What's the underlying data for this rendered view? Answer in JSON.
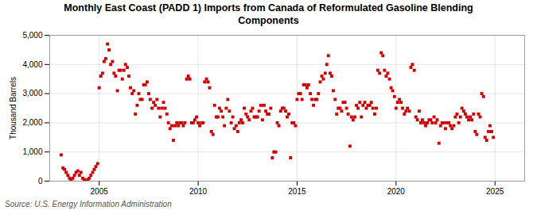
{
  "chart_data": {
    "type": "scatter",
    "title": "Monthly East Coast (PADD 1) Imports from Canada of Reformulated Gasoline Blending\nComponents",
    "ylabel": "Thousand Barrels",
    "source": "Source: U.S. Energy Information Administration",
    "color": "#cc0000",
    "marker": "square",
    "grid": true,
    "xlim": [
      2002.5,
      2026.5
    ],
    "xticks": [
      2005,
      2010,
      2015,
      2020,
      2025
    ],
    "ylim": [
      0,
      5000
    ],
    "yticks": [
      0,
      {
        "value": 1000,
        "label": "1,000"
      },
      {
        "value": 2000,
        "label": "2,000"
      },
      {
        "value": 3000,
        "label": "3,000"
      },
      {
        "value": 4000,
        "label": "4,000"
      },
      {
        "value": 5000,
        "label": "5,000"
      }
    ],
    "x": [
      2003.08,
      2003.17,
      2003.25,
      2003.33,
      2003.42,
      2003.5,
      2003.58,
      2003.67,
      2003.75,
      2003.83,
      2003.92,
      2004.0,
      2004.08,
      2004.17,
      2004.25,
      2004.33,
      2004.42,
      2004.5,
      2004.58,
      2004.67,
      2004.75,
      2004.83,
      2004.92,
      2005.0,
      2005.08,
      2005.17,
      2005.25,
      2005.33,
      2005.42,
      2005.5,
      2005.58,
      2005.67,
      2005.75,
      2005.83,
      2005.92,
      2006.0,
      2006.08,
      2006.17,
      2006.25,
      2006.33,
      2006.42,
      2006.5,
      2006.58,
      2006.67,
      2006.75,
      2006.83,
      2006.92,
      2007.0,
      2007.08,
      2007.17,
      2007.25,
      2007.33,
      2007.42,
      2007.5,
      2007.58,
      2007.67,
      2007.75,
      2007.83,
      2007.92,
      2008.0,
      2008.08,
      2008.17,
      2008.25,
      2008.33,
      2008.42,
      2008.5,
      2008.58,
      2008.67,
      2008.75,
      2008.83,
      2008.92,
      2009.0,
      2009.08,
      2009.17,
      2009.25,
      2009.33,
      2009.42,
      2009.5,
      2009.58,
      2009.67,
      2009.75,
      2009.83,
      2009.92,
      2010.0,
      2010.08,
      2010.17,
      2010.25,
      2010.33,
      2010.42,
      2010.5,
      2010.58,
      2010.67,
      2010.75,
      2010.83,
      2010.92,
      2011.0,
      2011.08,
      2011.17,
      2011.25,
      2011.33,
      2011.42,
      2011.5,
      2011.58,
      2011.67,
      2011.75,
      2011.83,
      2011.92,
      2012.0,
      2012.08,
      2012.17,
      2012.25,
      2012.33,
      2012.42,
      2012.5,
      2012.58,
      2012.67,
      2012.75,
      2012.83,
      2012.92,
      2013.0,
      2013.08,
      2013.17,
      2013.25,
      2013.33,
      2013.42,
      2013.5,
      2013.58,
      2013.67,
      2013.75,
      2013.83,
      2013.92,
      2014.0,
      2014.08,
      2014.17,
      2014.25,
      2014.33,
      2014.42,
      2014.5,
      2014.58,
      2014.67,
      2014.75,
      2014.83,
      2014.92,
      2015.0,
      2015.08,
      2015.17,
      2015.25,
      2015.33,
      2015.42,
      2015.5,
      2015.58,
      2015.67,
      2015.75,
      2015.83,
      2015.92,
      2016.0,
      2016.08,
      2016.17,
      2016.25,
      2016.33,
      2016.42,
      2016.5,
      2016.58,
      2016.67,
      2016.75,
      2016.83,
      2016.92,
      2017.0,
      2017.08,
      2017.17,
      2017.25,
      2017.33,
      2017.42,
      2017.5,
      2017.58,
      2017.67,
      2017.75,
      2017.83,
      2017.92,
      2018.0,
      2018.08,
      2018.17,
      2018.25,
      2018.33,
      2018.42,
      2018.5,
      2018.58,
      2018.67,
      2018.75,
      2018.83,
      2018.92,
      2019.0,
      2019.08,
      2019.17,
      2019.25,
      2019.33,
      2019.42,
      2019.5,
      2019.58,
      2019.67,
      2019.75,
      2019.83,
      2019.92,
      2020.0,
      2020.08,
      2020.17,
      2020.25,
      2020.33,
      2020.42,
      2020.5,
      2020.58,
      2020.67,
      2020.75,
      2020.83,
      2020.92,
      2021.0,
      2021.08,
      2021.17,
      2021.25,
      2021.33,
      2021.42,
      2021.5,
      2021.58,
      2021.67,
      2021.75,
      2021.83,
      2021.92,
      2022.0,
      2022.08,
      2022.17,
      2022.25,
      2022.33,
      2022.42,
      2022.5,
      2022.58,
      2022.67,
      2022.75,
      2022.83,
      2022.92,
      2023.0,
      2023.08,
      2023.17,
      2023.25,
      2023.33,
      2023.42,
      2023.5,
      2023.58,
      2023.67,
      2023.75,
      2023.83,
      2023.92,
      2024.0,
      2024.08,
      2024.17,
      2024.25,
      2024.33,
      2024.42,
      2024.5,
      2024.58,
      2024.67,
      2024.75,
      2024.83,
      2024.92
    ],
    "values": [
      900,
      450,
      400,
      300,
      200,
      100,
      50,
      100,
      200,
      300,
      350,
      200,
      300,
      100,
      50,
      0,
      50,
      100,
      200,
      300,
      400,
      500,
      600,
      3200,
      3600,
      3700,
      4100,
      4200,
      4700,
      4500,
      4000,
      4100,
      3700,
      3600,
      3100,
      3800,
      3800,
      3500,
      3800,
      4000,
      3900,
      3600,
      3200,
      3000,
      3100,
      2300,
      2600,
      3000,
      2800,
      2800,
      3300,
      3300,
      3400,
      3000,
      2800,
      2500,
      2700,
      2600,
      2800,
      2500,
      2200,
      2500,
      2700,
      2500,
      2300,
      2000,
      1800,
      1900,
      1400,
      1900,
      2000,
      1900,
      2000,
      2000,
      1900,
      2000,
      3500,
      3600,
      3500,
      2000,
      2000,
      2100,
      2200,
      2000,
      1900,
      2000,
      2000,
      3400,
      3500,
      3400,
      3200,
      1700,
      1600,
      2600,
      2200,
      2200,
      2500,
      2400,
      2200,
      1900,
      2500,
      2800,
      2400,
      2000,
      2200,
      1800,
      1900,
      1700,
      2000,
      2100,
      2000,
      2500,
      2300,
      2200,
      2100,
      2400,
      2500,
      2200,
      2200,
      2200,
      2400,
      2600,
      2100,
      2600,
      2400,
      2300,
      2300,
      2500,
      800,
      1000,
      1000,
      2000,
      1900,
      2400,
      2500,
      2500,
      2400,
      2200,
      2300,
      800,
      2000,
      2000,
      1900,
      2800,
      3000,
      3000,
      2800,
      3300,
      3300,
      3200,
      3300,
      3000,
      2800,
      2600,
      2800,
      2800,
      3000,
      3400,
      3600,
      3500,
      3700,
      4000,
      4300,
      3700,
      3600,
      3100,
      2800,
      2300,
      2500,
      2500,
      2400,
      2700,
      2700,
      2500,
      2300,
      1200,
      2200,
      2100,
      2200,
      2600,
      2500,
      2700,
      2200,
      2600,
      2700,
      2500,
      2600,
      2600,
      2700,
      2500,
      2300,
      2500,
      3800,
      3700,
      4400,
      4300,
      3800,
      3600,
      3700,
      3500,
      3200,
      3100,
      2900,
      2500,
      2700,
      2800,
      2700,
      2500,
      2300,
      2400,
      2500,
      2400,
      3900,
      4000,
      3800,
      2200,
      2100,
      2400,
      2000,
      2100,
      2000,
      1900,
      2000,
      2100,
      2100,
      2000,
      2200,
      2000,
      2100,
      1300,
      1900,
      2000,
      2000,
      1800,
      2000,
      2000,
      1900,
      1800,
      1900,
      2200,
      2300,
      2000,
      2200,
      2500,
      2400,
      2300,
      2200,
      2100,
      2200,
      2100,
      2300,
      1700,
      1600,
      2300,
      2200,
      3000,
      2900,
      1500,
      1400,
      1700,
      1900,
      1700,
      1500
    ]
  }
}
